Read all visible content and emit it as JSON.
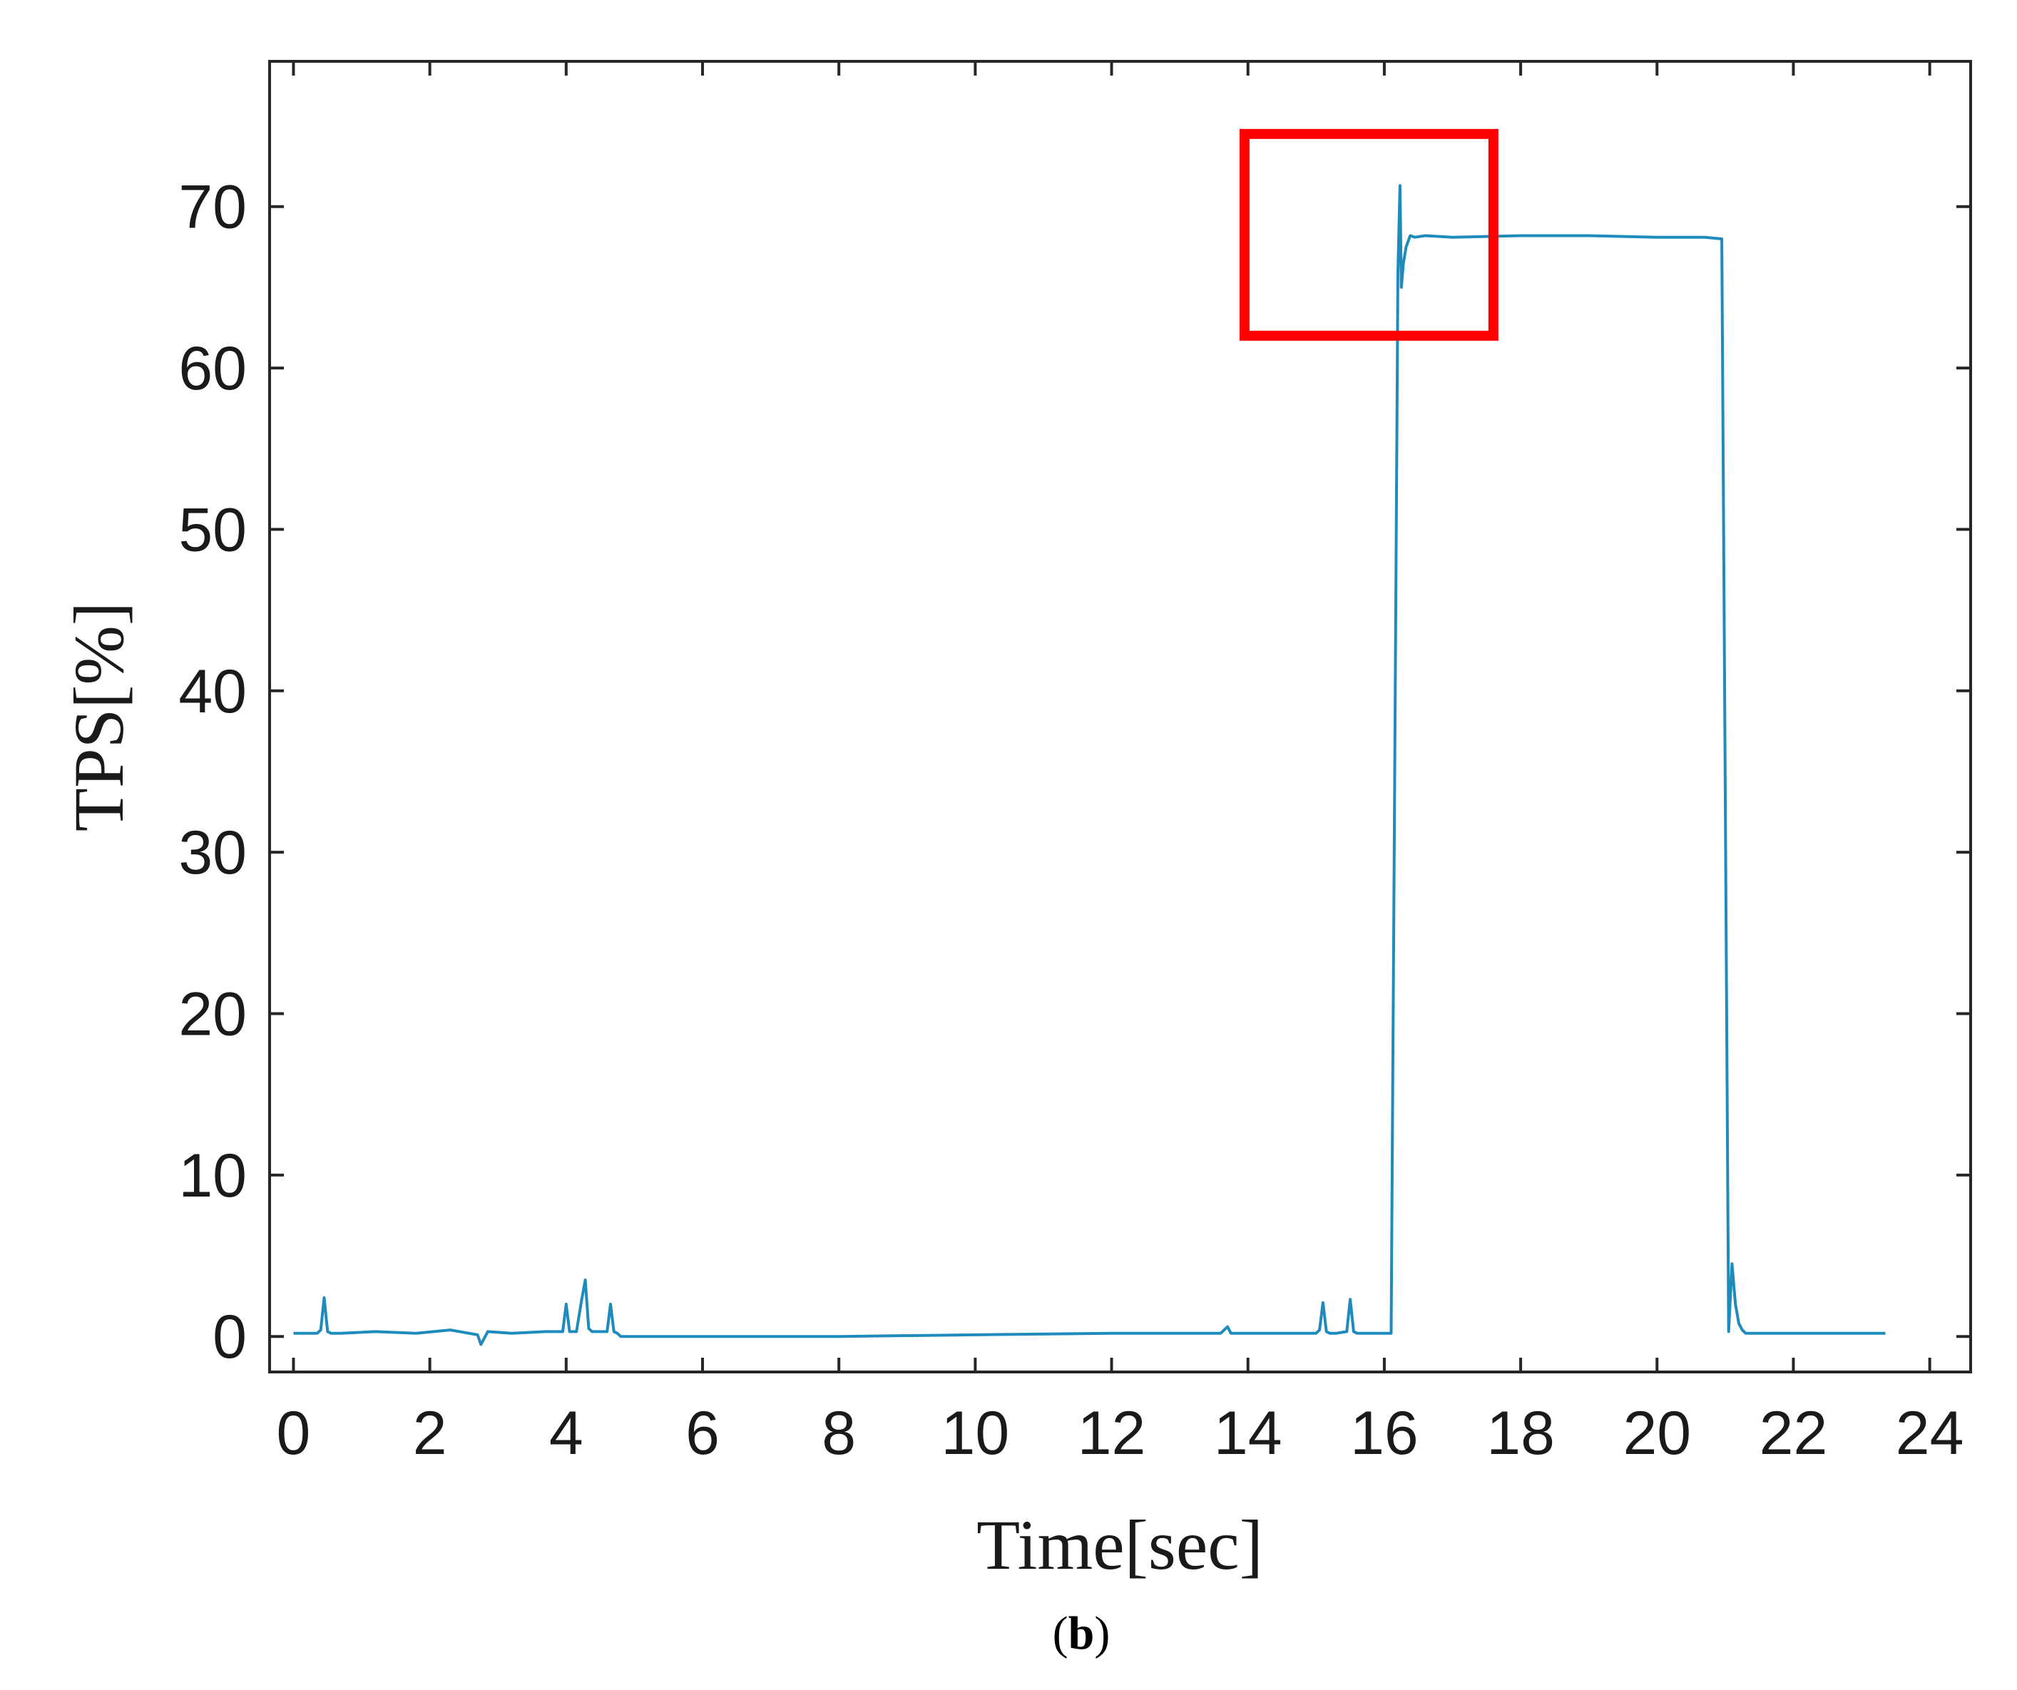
{
  "chart_data": {
    "type": "line",
    "xlabel": "Time[sec]",
    "ylabel": "TPS[%]",
    "xlim": [
      -0.35,
      24.6
    ],
    "ylim": [
      -2.2,
      79
    ],
    "x_ticks": [
      0,
      2,
      4,
      6,
      8,
      10,
      12,
      14,
      16,
      18,
      20,
      22,
      24
    ],
    "y_ticks": [
      0,
      10,
      20,
      30,
      40,
      50,
      60,
      70
    ],
    "grid": false,
    "line_color": "#1f8bbd",
    "highlight_color": "#ff0000",
    "highlight_box": {
      "x_range": [
        13.95,
        17.6
      ],
      "y_range": [
        62,
        74.5
      ]
    },
    "caption": {
      "open": "(",
      "letter": "b",
      "close": ")"
    },
    "series": [
      {
        "x": [
          0.0,
          0.35,
          0.4,
          0.45,
          0.5,
          0.55,
          0.7,
          1.2,
          1.8,
          2.3,
          2.7,
          2.75,
          2.85,
          3.2,
          3.7,
          3.95,
          4.0,
          4.05,
          4.1,
          4.15,
          4.22,
          4.28,
          4.33,
          4.38,
          4.42,
          4.5,
          4.6,
          4.65,
          4.7,
          4.75,
          4.8,
          4.9,
          5.2,
          6.0,
          8.0,
          10.0,
          12.0,
          13.6,
          13.7,
          13.75,
          13.8,
          13.9,
          14.5,
          15.0,
          15.05,
          15.1,
          15.15,
          15.2,
          15.3,
          15.45,
          15.5,
          15.55,
          15.6,
          15.65,
          15.75,
          16.0,
          16.1,
          16.2,
          16.23,
          16.25,
          16.28,
          16.32,
          16.38,
          16.45,
          16.6,
          17.0,
          18.0,
          19.0,
          20.0,
          20.7,
          20.95,
          21.05,
          21.1,
          21.15,
          21.2,
          21.25,
          21.3,
          21.4,
          21.8,
          22.5,
          23.2,
          23.35
        ],
        "y": [
          0.2,
          0.2,
          0.4,
          2.4,
          0.3,
          0.2,
          0.2,
          0.3,
          0.2,
          0.4,
          0.1,
          -0.5,
          0.3,
          0.2,
          0.3,
          0.3,
          2.0,
          0.3,
          0.3,
          0.3,
          2.1,
          3.5,
          0.5,
          0.3,
          0.3,
          0.3,
          0.3,
          2.0,
          0.3,
          0.2,
          0.0,
          0.0,
          0.0,
          0.0,
          0.0,
          0.1,
          0.2,
          0.2,
          0.6,
          0.2,
          0.2,
          0.2,
          0.2,
          0.2,
          0.4,
          2.1,
          0.3,
          0.2,
          0.2,
          0.3,
          2.3,
          0.3,
          0.2,
          0.2,
          0.2,
          0.2,
          0.2,
          66.0,
          71.3,
          65.0,
          66.5,
          67.5,
          68.2,
          68.1,
          68.2,
          68.1,
          68.2,
          68.2,
          68.1,
          68.1,
          68.0,
          0.3,
          4.5,
          2.0,
          0.8,
          0.4,
          0.2,
          0.2,
          0.2,
          0.2,
          0.2,
          0.2
        ]
      }
    ]
  }
}
